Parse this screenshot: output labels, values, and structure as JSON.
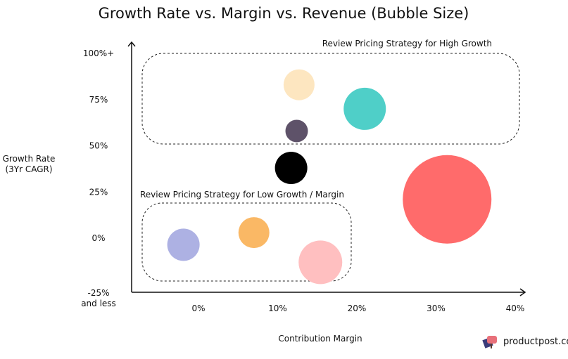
{
  "chart_data": {
    "type": "scatter",
    "title": "Growth Rate vs. Margin vs. Revenue (Bubble Size)",
    "xlabel": "Contribution Margin",
    "ylabel": [
      "Growth Rate",
      "(3Yr CAGR)"
    ],
    "x_ticks": [
      {
        "v": 0,
        "label": "0%"
      },
      {
        "v": 10,
        "label": "10%"
      },
      {
        "v": 20,
        "label": "20%"
      },
      {
        "v": 30,
        "label": "30%"
      },
      {
        "v": 40,
        "label": "40%"
      }
    ],
    "y_ticks": [
      {
        "v": 100,
        "label": "100%+"
      },
      {
        "v": 75,
        "label": "75%"
      },
      {
        "v": 50,
        "label": "50%"
      },
      {
        "v": 25,
        "label": "25%"
      },
      {
        "v": 0,
        "label": "0%"
      },
      {
        "v": -25,
        "label": "-25%",
        "label2": "and less"
      }
    ],
    "xlim": [
      -8,
      40
    ],
    "ylim": [
      -25,
      100
    ],
    "grid": false,
    "points": [
      {
        "x": 12.7,
        "y": 83,
        "size": 22,
        "color": "#FDE6C0"
      },
      {
        "x": 21,
        "y": 70,
        "size": 30,
        "color": "#4FCFC8"
      },
      {
        "x": 12.4,
        "y": 58,
        "size": 16,
        "color": "#5E5269"
      },
      {
        "x": 11.7,
        "y": 38,
        "size": 23,
        "color": "#000000"
      },
      {
        "x": 31.4,
        "y": 21,
        "size": 63,
        "color": "#FF6B6B"
      },
      {
        "x": -1.9,
        "y": -3,
        "size": 23,
        "color": "#ADB1E3"
      },
      {
        "x": 7,
        "y": 3,
        "size": 22,
        "color": "#FAB865"
      },
      {
        "x": 15.4,
        "y": -11,
        "size": 31,
        "color": "#FFBFC0"
      }
    ],
    "annotations": [
      {
        "text": "Review Pricing Strategy for High Growth"
      },
      {
        "text": "Review Pricing Strategy for Low Growth / Margin"
      }
    ]
  },
  "brand": "productpost.co"
}
